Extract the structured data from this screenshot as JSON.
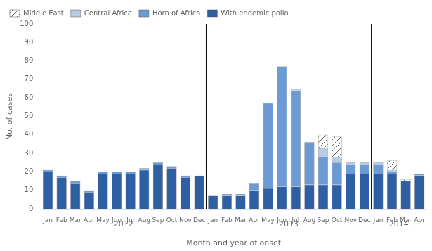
{
  "chart_data": {
    "type": "bar",
    "stacked": true,
    "categories": [
      "Jan",
      "Feb",
      "Mar",
      "Apr",
      "May",
      "Jun",
      "Jul",
      "Aug",
      "Sep",
      "Oct",
      "Nov",
      "Dec",
      "Jan",
      "Feb",
      "Mar",
      "Apr",
      "May",
      "Jun",
      "Jul",
      "Aug",
      "Sep",
      "Oct",
      "Nov",
      "Dec",
      "Jan",
      "Feb",
      "Mar",
      "Apr"
    ],
    "series": [
      {
        "name": "With endemic polio",
        "color": "#2e5fa3",
        "values": [
          20,
          17,
          14,
          9,
          19,
          19,
          19,
          21,
          24,
          22,
          17,
          18,
          7,
          7,
          7,
          10,
          11,
          12,
          12,
          13,
          13,
          13,
          19,
          19,
          19,
          19,
          15,
          18
        ]
      },
      {
        "name": "Horn of Africa",
        "color": "#6b9bd2",
        "values": [
          1,
          1,
          1,
          1,
          1,
          1,
          1,
          1,
          1,
          1,
          1,
          0,
          0,
          1,
          1,
          4,
          46,
          65,
          52,
          23,
          15,
          12,
          5,
          5,
          5,
          1,
          0,
          1
        ]
      },
      {
        "name": "Central Africa",
        "color": "#b8cce4",
        "values": [
          0,
          0,
          0,
          0,
          0,
          0,
          0,
          0,
          0,
          0,
          0,
          0,
          0,
          0,
          0,
          0,
          0,
          0,
          1,
          0,
          5,
          3,
          1,
          1,
          1,
          1,
          0,
          0
        ]
      },
      {
        "name": "Middle East",
        "color": "#ffffff",
        "values": [
          0,
          0,
          0,
          0,
          0,
          0,
          0,
          0,
          0,
          0,
          0,
          0,
          0,
          0,
          0,
          0,
          0,
          0,
          0,
          0,
          7,
          11,
          0,
          0,
          0,
          5,
          1,
          0
        ]
      }
    ],
    "annotations": [
      {
        "text": "2012",
        "start": 0,
        "end": 11
      },
      {
        "text": "2013",
        "start": 12,
        "end": 23
      },
      {
        "text": "2014",
        "start": 24,
        "end": 27
      }
    ],
    "xlabel": "Month and year of onset",
    "ylabel": "No. of cases",
    "ylim": [
      0,
      100
    ],
    "yticks": [
      0,
      10,
      20,
      30,
      40,
      50,
      60,
      70,
      80,
      90,
      100
    ],
    "grid": false,
    "legend": "upper left"
  }
}
